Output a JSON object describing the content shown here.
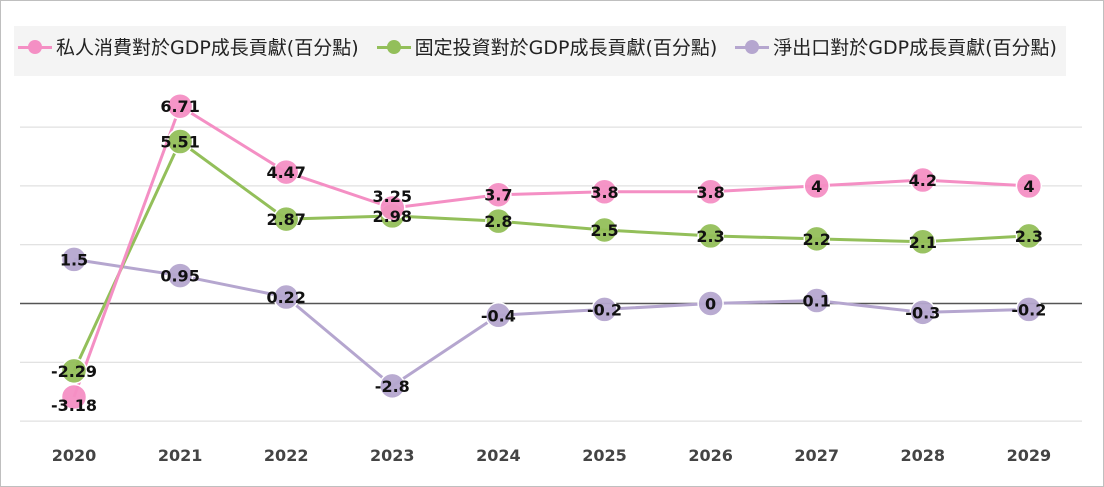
{
  "chart_data": {
    "type": "line",
    "title": "",
    "xlabel": "",
    "ylabel": "",
    "categories": [
      "2020",
      "2021",
      "2022",
      "2023",
      "2024",
      "2025",
      "2026",
      "2027",
      "2028",
      "2029"
    ],
    "ylim": [
      -4,
      6
    ],
    "grid": true,
    "legend": "top",
    "series": [
      {
        "name": "私人消費對於GDP成長貢獻(百分點)",
        "color": "#f48fc4",
        "values": [
          -3.18,
          6.71,
          4.47,
          3.25,
          3.7,
          3.8,
          3.8,
          4,
          4.2,
          4
        ],
        "labels": [
          "-3.18",
          "6.71",
          "4.47",
          "3.25",
          "3.7",
          "3.8",
          "3.8",
          "4",
          "4.2",
          "4"
        ]
      },
      {
        "name": "固定投資對於GDP成長貢獻(百分點)",
        "color": "#93bf5a",
        "values": [
          -2.29,
          5.51,
          2.87,
          2.98,
          2.8,
          2.5,
          2.3,
          2.2,
          2.1,
          2.3
        ],
        "labels": [
          "-2.29",
          "5.51",
          "2.87",
          "2.98",
          "2.8",
          "2.5",
          "2.3",
          "2.2",
          "2.1",
          "2.3"
        ]
      },
      {
        "name": "淨出口對於GDP成長貢獻(百分點)",
        "color": "#b5a6cf",
        "values": [
          1.5,
          0.95,
          0.22,
          -2.8,
          -0.4,
          -0.2,
          0,
          0.1,
          -0.3,
          -0.2
        ],
        "labels": [
          "1.5",
          "0.95",
          "0.22",
          "-2.8",
          "-0.4",
          "-0.2",
          "0",
          "0.1",
          "-0.3",
          "-0.2"
        ]
      }
    ]
  }
}
